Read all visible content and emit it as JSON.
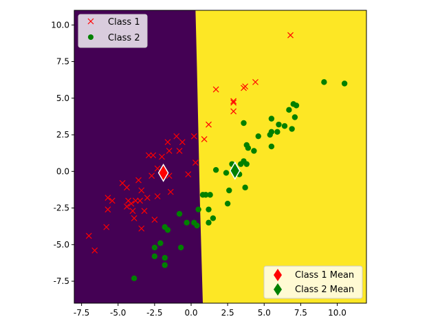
{
  "chart_data": {
    "type": "scatter",
    "title": "",
    "xlabel": "",
    "ylabel": "",
    "xlim": [
      -8,
      12
    ],
    "ylim": [
      -9,
      11
    ],
    "x_ticks": [
      "-7.5",
      "-5.0",
      "-2.5",
      "0.0",
      "2.5",
      "5.0",
      "7.5",
      "10.0"
    ],
    "x_tick_values": [
      -7.5,
      -5.0,
      -2.5,
      0.0,
      2.5,
      5.0,
      7.5,
      10.0
    ],
    "y_ticks": [
      "-7.5",
      "-5.0",
      "-2.5",
      "0.0",
      "2.5",
      "5.0",
      "7.5",
      "10.0"
    ],
    "y_tick_values": [
      -7.5,
      -5.0,
      -2.5,
      0.0,
      2.5,
      5.0,
      7.5,
      10.0
    ],
    "grid": false,
    "decision_regions": {
      "class_1_color": "#440154",
      "class_2_color": "#fde725",
      "boundary": [
        [
          0.3,
          11
        ],
        [
          0.4,
          7.0
        ],
        [
          0.5,
          2.5
        ],
        [
          0.6,
          -2.0
        ],
        [
          0.8,
          -9.0
        ]
      ]
    },
    "series": [
      {
        "name": "Class 1",
        "marker": "x",
        "color": "#ff0000",
        "points": [
          [
            6.8,
            9.3
          ],
          [
            1.7,
            5.6
          ],
          [
            3.6,
            5.7
          ],
          [
            3.7,
            5.8
          ],
          [
            4.4,
            6.1
          ],
          [
            2.9,
            4.8
          ],
          [
            2.9,
            4.7
          ],
          [
            2.9,
            4.1
          ],
          [
            1.2,
            3.2
          ],
          [
            0.9,
            2.2
          ],
          [
            0.2,
            2.4
          ],
          [
            -1.0,
            2.4
          ],
          [
            -0.6,
            2.0
          ],
          [
            -1.5,
            1.4
          ],
          [
            -0.8,
            1.4
          ],
          [
            -2.9,
            1.1
          ],
          [
            -2.6,
            1.1
          ],
          [
            -2.0,
            1.0
          ],
          [
            -2.7,
            -0.3
          ],
          [
            -2.3,
            0.2
          ],
          [
            -1.5,
            -0.3
          ],
          [
            -0.2,
            -0.2
          ],
          [
            0.3,
            0.6
          ],
          [
            -4.7,
            -0.8
          ],
          [
            -4.4,
            -1.1
          ],
          [
            -3.6,
            -0.6
          ],
          [
            -1.4,
            -1.4
          ],
          [
            -2.3,
            -1.7
          ],
          [
            -3.4,
            -1.3
          ],
          [
            -3.8,
            -2.0
          ],
          [
            -3.5,
            -2.0
          ],
          [
            -3.0,
            -1.8
          ],
          [
            -4.3,
            -2.0
          ],
          [
            -4.1,
            -2.2
          ],
          [
            -4.4,
            -2.4
          ],
          [
            -5.7,
            -1.8
          ],
          [
            -5.4,
            -2.0
          ],
          [
            -5.7,
            -2.6
          ],
          [
            -4.0,
            -2.7
          ],
          [
            -3.2,
            -2.7
          ],
          [
            -3.9,
            -3.2
          ],
          [
            -2.5,
            -3.3
          ],
          [
            -3.4,
            -3.9
          ],
          [
            -5.8,
            -3.8
          ],
          [
            -7.0,
            -4.4
          ],
          [
            -6.6,
            -5.4
          ],
          [
            -1.6,
            2.0
          ]
        ]
      },
      {
        "name": "Class 2",
        "marker": "o",
        "color": "#008000",
        "points": [
          [
            9.1,
            6.1
          ],
          [
            10.5,
            6.0
          ],
          [
            7.0,
            4.6
          ],
          [
            7.2,
            4.5
          ],
          [
            6.7,
            4.2
          ],
          [
            7.1,
            3.7
          ],
          [
            5.5,
            3.6
          ],
          [
            3.6,
            3.3
          ],
          [
            6.0,
            3.2
          ],
          [
            6.4,
            3.1
          ],
          [
            6.9,
            2.9
          ],
          [
            5.4,
            2.5
          ],
          [
            5.5,
            2.7
          ],
          [
            5.9,
            2.7
          ],
          [
            4.6,
            2.4
          ],
          [
            3.8,
            1.8
          ],
          [
            3.9,
            1.6
          ],
          [
            4.3,
            1.4
          ],
          [
            5.5,
            1.7
          ],
          [
            3.6,
            0.7
          ],
          [
            3.8,
            0.5
          ],
          [
            3.4,
            0.5
          ],
          [
            2.8,
            0.5
          ],
          [
            2.4,
            -0.1
          ],
          [
            1.7,
            0.1
          ],
          [
            3.3,
            -0.2
          ],
          [
            2.6,
            -1.3
          ],
          [
            3.7,
            -1.1
          ],
          [
            0.8,
            -1.6
          ],
          [
            1.3,
            -1.6
          ],
          [
            0.5,
            -2.6
          ],
          [
            1.2,
            -2.6
          ],
          [
            2.5,
            -2.2
          ],
          [
            -0.8,
            -2.9
          ],
          [
            1.5,
            -3.2
          ],
          [
            0.2,
            -3.5
          ],
          [
            -0.3,
            -3.5
          ],
          [
            0.4,
            -3.7
          ],
          [
            1.2,
            -3.5
          ],
          [
            -1.8,
            -3.8
          ],
          [
            -1.6,
            -4.0
          ],
          [
            -2.1,
            -4.9
          ],
          [
            -0.7,
            -5.2
          ],
          [
            -2.5,
            -5.2
          ],
          [
            -2.5,
            -5.8
          ],
          [
            -1.8,
            -5.9
          ],
          [
            -1.8,
            -6.4
          ],
          [
            -3.9,
            -7.3
          ],
          [
            1.0,
            -1.6
          ]
        ]
      }
    ],
    "means": [
      {
        "name": "Class 1 Mean",
        "color": "#ff0000",
        "point": [
          -1.9,
          -0.1
        ]
      },
      {
        "name": "Class 2 Mean",
        "color": "#008000",
        "point": [
          3.0,
          0.05
        ]
      }
    ],
    "legends": {
      "upper_left": [
        "Class 1",
        "Class 2"
      ],
      "lower_right": [
        "Class 1 Mean",
        "Class 2 Mean"
      ]
    }
  }
}
